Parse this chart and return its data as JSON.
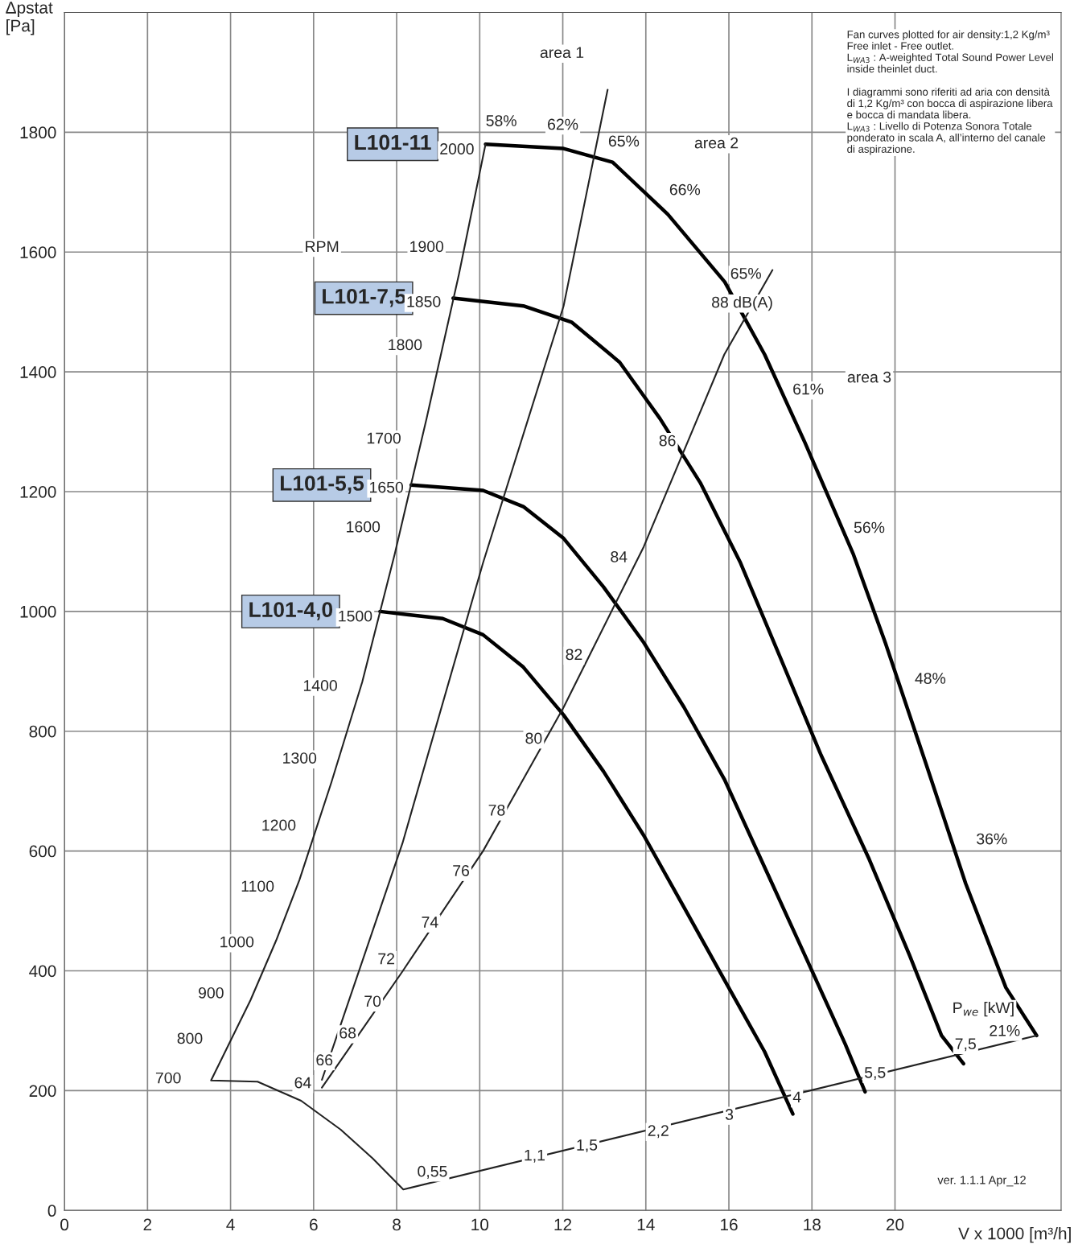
{
  "chart_data": {
    "type": "line",
    "ylabel": "Δpstat\n[Pa]",
    "xlabel": "V x 1000 [m³/h]",
    "xlim": [
      0,
      24
    ],
    "ylim": [
      0,
      2000
    ],
    "xticks": [
      0,
      2,
      4,
      6,
      8,
      10,
      12,
      14,
      16,
      18,
      20
    ],
    "yticks": [
      0,
      200,
      400,
      600,
      800,
      1000,
      1200,
      1400,
      1600,
      1800
    ],
    "grid": true,
    "legend": false,
    "marker": "none",
    "series": [
      {
        "name": "L101-11",
        "color": "#000000",
        "x": [
          10.14,
          12.0,
          13.2,
          14.53,
          15.9,
          16.86,
          17.83,
          19.0,
          19.77,
          20.74,
          21.7,
          22.67,
          23.41
        ],
        "values": [
          1780,
          1773,
          1750,
          1663,
          1550,
          1429,
          1282,
          1095,
          947,
          747,
          546,
          372,
          292
        ]
      },
      {
        "name": "L101-7,5",
        "color": "#000000",
        "x": [
          9.36,
          11.05,
          12.21,
          13.37,
          14.34,
          15.31,
          16.28,
          17.25,
          18.22,
          19.38,
          20.35,
          21.12,
          21.65
        ],
        "values": [
          1523,
          1510,
          1483,
          1416,
          1322,
          1215,
          1081,
          921,
          760,
          586,
          426,
          292,
          245
        ]
      },
      {
        "name": "L101-5,5",
        "color": "#000000",
        "x": [
          8.35,
          10.08,
          11.05,
          12.02,
          12.98,
          13.95,
          14.92,
          15.89,
          16.86,
          17.83,
          18.8,
          19.28
        ],
        "values": [
          1211,
          1202,
          1175,
          1122,
          1041,
          948,
          840,
          720,
          573,
          426,
          278,
          198
        ]
      },
      {
        "name": "L101-4,0",
        "color": "#000000",
        "x": [
          7.6,
          9.11,
          10.08,
          11.05,
          12.02,
          12.98,
          13.95,
          14.92,
          15.89,
          16.86,
          17.54
        ],
        "values": [
          1000,
          988,
          961,
          907,
          827,
          733,
          626,
          506,
          385,
          265,
          161
        ]
      },
      {
        "color": "#222222",
        "x": [
          23.41,
          8.16,
          7.42,
          6.65,
          5.7,
          4.65,
          3.53,
          4.48,
          5.1,
          5.66,
          6.43,
          7.17,
          7.95,
          8.72,
          9.5,
          10.14
        ],
        "values": [
          292,
          35,
          87,
          135,
          183,
          215,
          217,
          351,
          451,
          552,
          715,
          882,
          1095,
          1322,
          1563,
          1780
        ]
      },
      {
        "color": "#222222",
        "x": [
          6.2,
          8.14,
          10.08,
          12.02,
          13.08
        ],
        "values": [
          218,
          613,
          1081,
          1510,
          1871
        ]
      },
      {
        "color": "#222222",
        "x": [
          6.2,
          8.14,
          10.08,
          12.02,
          13.95,
          15.89,
          17.05
        ],
        "values": [
          205,
          399,
          600,
          840,
          1108,
          1429,
          1570
        ]
      }
    ],
    "annotations": [
      "Fan curves plotted for air density:1,2 Kg/m³\nFree inlet - Free outlet.\nL$_{WA3}$ : A-weighted Total Sound Power Level\ninside theinlet duct.\n\nI diagrammi sono riferiti ad aria con densità\ndi 1,2 Kg/m³ con bocca di aspirazione libera\ne bocca di mandata libera.\nL$_{WA3}$ : Livello di Potenza Sonora Totale\nponderato in scala A, all’interno del canale\ndi aspirazione.",
      "ver. 1.1.1 Apr_12",
      "2000",
      "1850",
      "1650",
      "1500",
      "area 1",
      "area 2",
      "area 3",
      "58%",
      "62%",
      "65%",
      "66%",
      "65%",
      "61%",
      "56%",
      "48%",
      "36%",
      "21%",
      "RPM",
      "1900",
      "1800",
      "1700",
      "1600",
      "1400",
      "1300",
      "1200",
      "1100",
      "1000",
      "900",
      "800",
      "700",
      "88 dB(A)",
      "86",
      "84",
      "82",
      "80",
      "78",
      "76",
      "74",
      "72",
      "70",
      "68",
      "66",
      "64",
      "0,55",
      "1,1",
      "1,5",
      "2,2",
      "3",
      "4",
      "5,5",
      "7,5",
      "P$_{we}$ [kW]"
    ]
  }
}
